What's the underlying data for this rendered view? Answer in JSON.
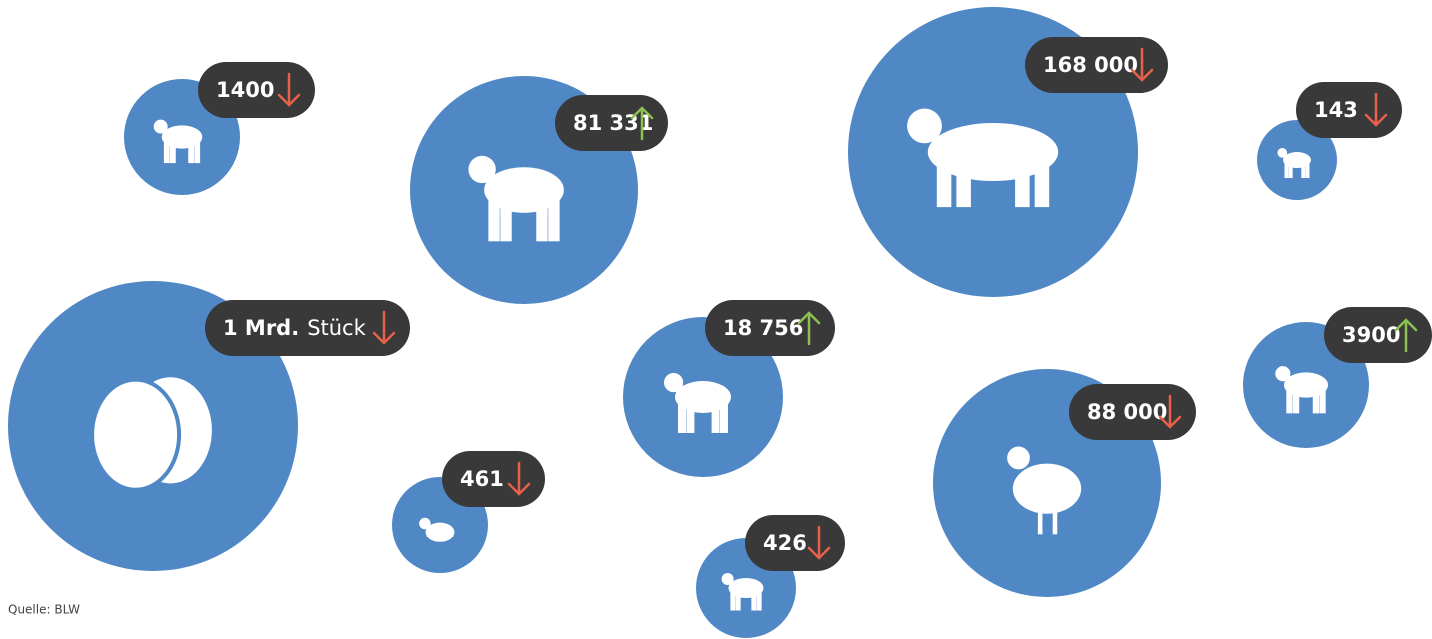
{
  "items": [
    {
      "value": "1400",
      "trend": "down"
    },
    {
      "value": "81 331",
      "trend": "up"
    },
    {
      "value": "168 000",
      "trend": "down"
    },
    {
      "value": "143",
      "trend": "down"
    },
    {
      "value": "1 Mrd.",
      "unit": "Stück",
      "trend": "down"
    },
    {
      "value": "18 756",
      "trend": "up"
    },
    {
      "value": "461",
      "trend": "down"
    },
    {
      "value": "426",
      "trend": "down"
    },
    {
      "value": "88 000",
      "trend": "down"
    },
    {
      "value": "3900",
      "trend": "up"
    }
  ],
  "source": "Quelle: BLW"
}
